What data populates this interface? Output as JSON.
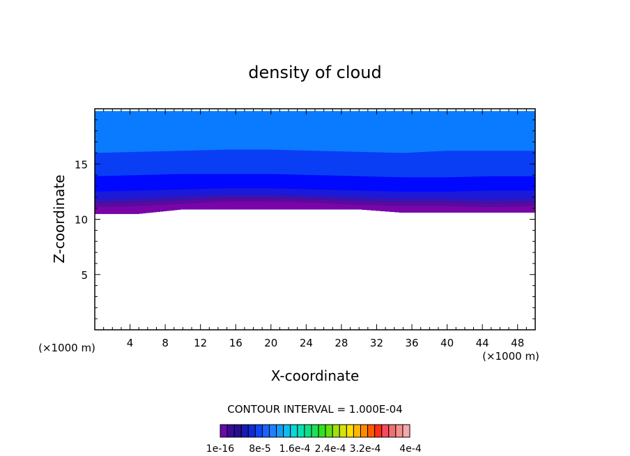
{
  "chart_data": {
    "type": "heatmap",
    "title": "density of cloud",
    "xlabel": "X-coordinate",
    "ylabel": "Z-coordinate",
    "x_unit": "(×1000 m)",
    "x_unit_right": "(×1000 m)",
    "xlim": [
      0,
      50
    ],
    "ylim": [
      0,
      20
    ],
    "x_ticks": [
      4,
      8,
      12,
      16,
      20,
      24,
      28,
      32,
      36,
      40,
      44,
      48
    ],
    "y_ticks": [
      5,
      10,
      15
    ],
    "contour_interval_label": "CONTOUR INTERVAL = 1.000E-04",
    "colorbar": {
      "colors": [
        "#6a0aa8",
        "#3a0a9a",
        "#24108f",
        "#1a1ab8",
        "#0d2bd6",
        "#1045f0",
        "#1a63ff",
        "#1f80ff",
        "#169cf7",
        "#0fbcf0",
        "#08d8d8",
        "#08e0b0",
        "#0fe088",
        "#1ee056",
        "#33e020",
        "#66e010",
        "#a0e010",
        "#d8e010",
        "#ffe000",
        "#ffb800",
        "#ff8a00",
        "#ff5a00",
        "#ff3010",
        "#f54a60",
        "#f07070",
        "#f59090",
        "#f8a8a8"
      ],
      "tick_labels": [
        "1e-16",
        "8e-5",
        "1.6e-4",
        "2.4e-4",
        "3.2e-4",
        "4e-4"
      ]
    },
    "bands": [
      {
        "color": "#7a04a8",
        "z_bottom": [
          10.5,
          10.5,
          10.9,
          10.9,
          10.9,
          10.9,
          10.9,
          10.6,
          10.6,
          10.6,
          10.6
        ],
        "z_top": [
          11.1,
          11.2,
          11.4,
          11.6,
          11.6,
          11.5,
          11.3,
          11.2,
          11.2,
          11.1,
          11.2
        ]
      },
      {
        "color": "#5a0a9c",
        "z_top": [
          11.4,
          11.5,
          11.7,
          11.9,
          11.9,
          11.8,
          11.6,
          11.5,
          11.5,
          11.4,
          11.5
        ]
      },
      {
        "color": "#3c12b0",
        "z_top": [
          11.8,
          11.9,
          12.1,
          12.2,
          12.2,
          12.1,
          12.0,
          11.9,
          11.9,
          11.8,
          11.9
        ]
      },
      {
        "color": "#1a1ad8",
        "z_top": [
          12.5,
          12.6,
          12.7,
          12.8,
          12.8,
          12.7,
          12.6,
          12.5,
          12.5,
          12.6,
          12.6
        ]
      },
      {
        "color": "#0008ff",
        "z_top": [
          13.9,
          14.0,
          14.1,
          14.1,
          14.1,
          14.0,
          13.9,
          13.8,
          13.8,
          13.9,
          13.9
        ]
      },
      {
        "color": "#0a3ef5",
        "z_top": [
          16.0,
          16.1,
          16.2,
          16.3,
          16.3,
          16.2,
          16.1,
          16.0,
          16.2,
          16.2,
          16.2
        ]
      },
      {
        "color": "#0a7aff",
        "z_top": [
          19.8,
          19.8,
          19.8,
          19.8,
          19.8,
          19.8,
          19.8,
          19.8,
          19.8,
          19.8,
          19.8
        ]
      }
    ],
    "band_x": [
      0,
      5,
      10,
      15,
      20,
      25,
      30,
      35,
      40,
      45,
      50
    ]
  }
}
